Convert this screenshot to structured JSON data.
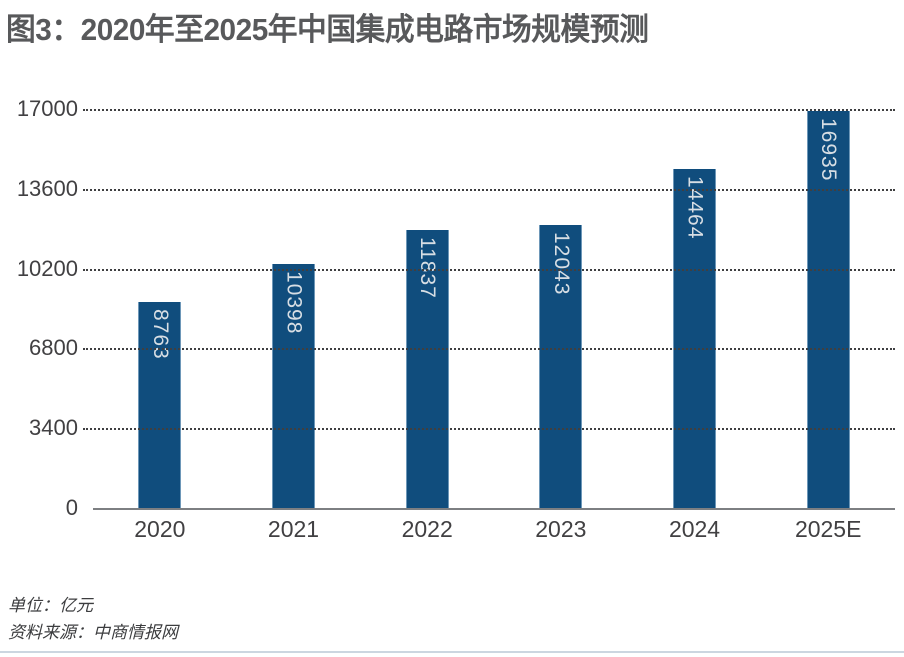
{
  "title": "图3：2020年至2025年中国集成电路市场规模预测",
  "chart_data": {
    "type": "bar",
    "title": "图3：2020年至2025年中国集成电路市场规模预测",
    "categories": [
      "2020",
      "2021",
      "2022",
      "2023",
      "2024",
      "2025E"
    ],
    "values": [
      8763,
      10398,
      11837,
      12043,
      14464,
      16935
    ],
    "xlabel": "",
    "ylabel": "",
    "ylim": [
      0,
      17000
    ],
    "yticks": [
      0,
      3400,
      6800,
      10200,
      13600,
      17000
    ],
    "grid": "horizontal-dotted",
    "legend": "none",
    "bar_color": "#104d7d",
    "bar_label_color": "#d7dee4",
    "value_label_position": "inside-top-vertical"
  },
  "footer": {
    "unit": "单位：亿元",
    "source": "资料来源：中商情报网"
  },
  "colors": {
    "title_text": "#58595b",
    "axis_text": "#414042",
    "baseline": "#7d7f82",
    "gridline": "#3f3f41",
    "bottom_divider": "#ccd6e0"
  }
}
